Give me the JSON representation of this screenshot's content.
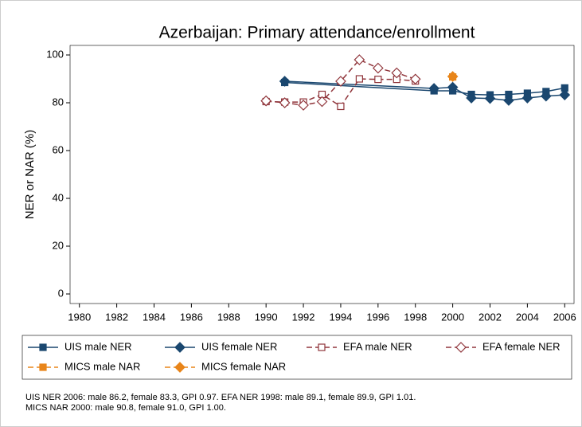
{
  "chart_data": {
    "type": "line",
    "title": "Azerbaijan: Primary attendance/enrollment",
    "y_label": "NER or NAR (%)",
    "xlim": [
      1979.5,
      2006.5
    ],
    "xticks": [
      1980,
      1982,
      1984,
      1986,
      1988,
      1990,
      1992,
      1994,
      1996,
      1998,
      2000,
      2002,
      2004,
      2006
    ],
    "ylim": [
      -4,
      104
    ],
    "yticks": [
      0,
      20,
      40,
      60,
      80,
      100
    ],
    "series": [
      {
        "name": "UIS male NER",
        "color": "#1a476f",
        "marker": "square",
        "filled": true,
        "line": "solid",
        "x": [
          1991,
          1999,
          2000,
          2001,
          2002,
          2003,
          2004,
          2005,
          2006
        ],
        "values": [
          88.5,
          85,
          85,
          83.5,
          83.3,
          83.5,
          84,
          84.7,
          86.2
        ]
      },
      {
        "name": "UIS female NER",
        "color": "#1a476f",
        "marker": "diamond",
        "filled": true,
        "line": "solid",
        "x": [
          1991,
          1999,
          2000,
          2001,
          2002,
          2003,
          2004,
          2005,
          2006
        ],
        "values": [
          89,
          86,
          86.5,
          82,
          81.8,
          81,
          82,
          82.8,
          83.3
        ]
      },
      {
        "name": "EFA male NER",
        "color": "#90353b",
        "marker": "square",
        "filled": false,
        "line": "dash",
        "x": [
          1990,
          1991,
          1992,
          1993,
          1994,
          1995,
          1996,
          1997,
          1998
        ],
        "values": [
          80.5,
          80.3,
          80.3,
          83.5,
          78.5,
          90,
          89.8,
          89.8,
          89.1
        ]
      },
      {
        "name": "EFA female NER",
        "color": "#90353b",
        "marker": "diamond",
        "filled": false,
        "line": "dash",
        "x": [
          1990,
          1991,
          1992,
          1993,
          1994,
          1995,
          1996,
          1997,
          1998
        ],
        "values": [
          80.8,
          80,
          79,
          80.5,
          89,
          98,
          94.5,
          92.5,
          89.9
        ]
      },
      {
        "name": "MICS male NAR",
        "color": "#e8851a",
        "marker": "square",
        "filled": true,
        "line": "dash",
        "x": [
          2000
        ],
        "values": [
          90.8
        ]
      },
      {
        "name": "MICS female NAR",
        "color": "#e8851a",
        "marker": "diamond",
        "filled": true,
        "line": "dash",
        "x": [
          2000
        ],
        "values": [
          91.0
        ]
      }
    ],
    "notes": [
      "UIS NER 2006: male 86.2, female 83.3, GPI 0.97. EFA NER 1998: male 89.1, female 89.9, GPI 1.01.",
      "MICS NAR 2000: male 90.8, female 91.0, GPI 1.00."
    ]
  }
}
